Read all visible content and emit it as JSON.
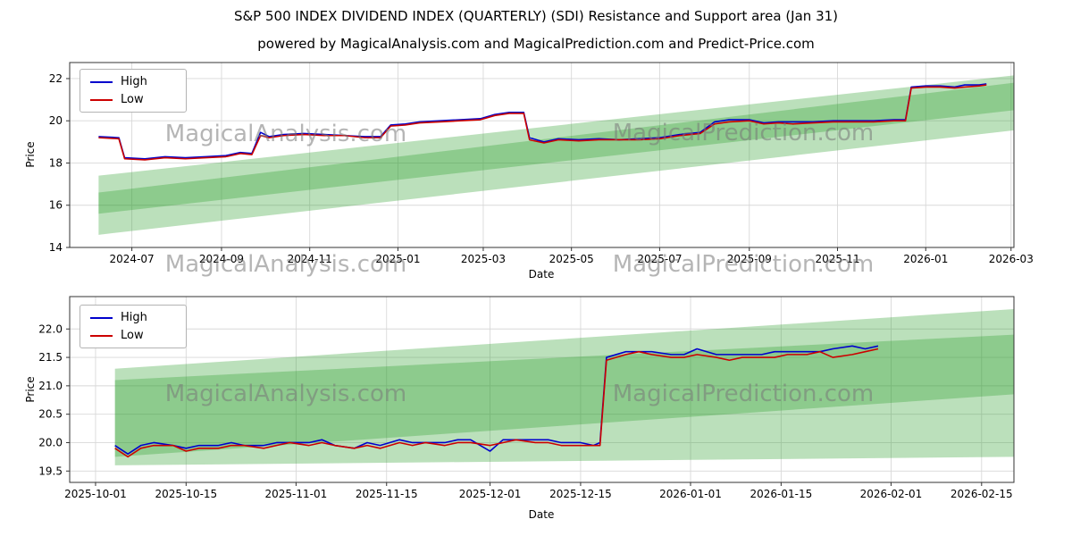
{
  "title": "S&P 500 INDEX DIVIDEND INDEX (QUARTERLY) (SDI) Resistance and Support area (Jan 31)",
  "subtitle": "powered by MagicalAnalysis.com and MagicalPrediction.com and Predict-Price.com",
  "watermarks": {
    "left": "MagicalAnalysis.com",
    "right": "MagicalPrediction.com"
  },
  "colors": {
    "high": "#0000cc",
    "low": "#cc0000",
    "band": "#2ca02c",
    "grid": "#d8d8d8",
    "axis": "#333333"
  },
  "chart_data": [
    {
      "type": "line",
      "title": "",
      "xlabel": "Date",
      "ylabel": "Price",
      "grid": true,
      "legend_position": "upper left",
      "x_domain": [
        "2024-05-19",
        "2026-03-03"
      ],
      "y_domain": [
        14,
        22.76
      ],
      "x_ticks": [
        {
          "v": "2024-07-01",
          "label": "2024-07"
        },
        {
          "v": "2024-09-01",
          "label": "2024-09"
        },
        {
          "v": "2024-11-01",
          "label": "2024-11"
        },
        {
          "v": "2025-01-01",
          "label": "2025-01"
        },
        {
          "v": "2025-03-01",
          "label": "2025-03"
        },
        {
          "v": "2025-05-01",
          "label": "2025-05"
        },
        {
          "v": "2025-07-01",
          "label": "2025-07"
        },
        {
          "v": "2025-09-01",
          "label": "2025-09"
        },
        {
          "v": "2025-11-01",
          "label": "2025-11"
        },
        {
          "v": "2026-01-01",
          "label": "2026-01"
        },
        {
          "v": "2026-03-01",
          "label": "2026-03"
        }
      ],
      "y_ticks": [
        {
          "v": 14,
          "label": "14"
        },
        {
          "v": 16,
          "label": "16"
        },
        {
          "v": 18,
          "label": "18"
        },
        {
          "v": 20,
          "label": "20"
        },
        {
          "v": 22,
          "label": "22"
        }
      ],
      "bands": [
        {
          "x": [
            "2024-06-08",
            "2026-03-03"
          ],
          "y_bottom": [
            14.6,
            19.55
          ],
          "y_top": [
            16.6,
            21.8
          ]
        },
        {
          "x": [
            "2024-06-08",
            "2026-03-03"
          ],
          "y_bottom": [
            15.6,
            20.5
          ],
          "y_top": [
            17.4,
            22.15
          ]
        }
      ],
      "x": [
        "2024-06-08",
        "2024-06-22",
        "2024-06-26",
        "2024-07-10",
        "2024-07-24",
        "2024-08-07",
        "2024-08-21",
        "2024-09-04",
        "2024-09-14",
        "2024-09-22",
        "2024-09-28",
        "2024-10-04",
        "2024-10-14",
        "2024-10-28",
        "2024-11-11",
        "2024-11-25",
        "2024-12-09",
        "2024-12-20",
        "2024-12-27",
        "2025-01-06",
        "2025-01-16",
        "2025-01-30",
        "2025-02-13",
        "2025-02-27",
        "2025-03-09",
        "2025-03-19",
        "2025-03-29",
        "2025-04-02",
        "2025-04-12",
        "2025-04-22",
        "2025-05-06",
        "2025-05-20",
        "2025-06-03",
        "2025-06-17",
        "2025-07-01",
        "2025-07-15",
        "2025-07-29",
        "2025-08-08",
        "2025-08-18",
        "2025-09-01",
        "2025-09-11",
        "2025-09-21",
        "2025-10-01",
        "2025-10-15",
        "2025-10-29",
        "2025-11-12",
        "2025-11-26",
        "2025-12-10",
        "2025-12-18",
        "2025-12-22",
        "2026-01-01",
        "2026-01-11",
        "2026-01-21",
        "2026-01-28",
        "2026-02-07",
        "2026-02-12"
      ],
      "series": [
        {
          "name": "High",
          "color_key": "high",
          "values": [
            19.25,
            19.2,
            18.25,
            18.2,
            18.3,
            18.25,
            18.3,
            18.35,
            18.5,
            18.45,
            19.45,
            19.25,
            19.35,
            19.4,
            19.35,
            19.3,
            19.25,
            19.25,
            19.8,
            19.85,
            19.95,
            20.0,
            20.05,
            20.1,
            20.3,
            20.4,
            20.4,
            19.2,
            19.0,
            19.15,
            19.1,
            19.15,
            19.1,
            19.15,
            19.2,
            19.35,
            19.45,
            19.95,
            20.05,
            20.05,
            19.9,
            19.95,
            19.95,
            19.95,
            20.0,
            20.0,
            20.0,
            20.05,
            20.05,
            21.6,
            21.65,
            21.65,
            21.6,
            21.7,
            21.7,
            21.75
          ]
        },
        {
          "name": "Low",
          "color_key": "low",
          "values": [
            19.2,
            19.15,
            18.2,
            18.15,
            18.25,
            18.2,
            18.25,
            18.3,
            18.45,
            18.4,
            19.3,
            19.2,
            19.3,
            19.35,
            19.3,
            19.3,
            19.2,
            19.2,
            19.75,
            19.8,
            19.9,
            19.95,
            20.0,
            20.05,
            20.25,
            20.35,
            20.35,
            19.1,
            18.95,
            19.1,
            19.05,
            19.1,
            19.1,
            19.1,
            19.15,
            19.3,
            19.4,
            19.85,
            19.95,
            20.0,
            19.85,
            19.9,
            19.85,
            19.9,
            19.95,
            19.95,
            19.95,
            20.0,
            20.0,
            21.55,
            21.6,
            21.6,
            21.55,
            21.6,
            21.65,
            21.7
          ]
        }
      ]
    },
    {
      "type": "line",
      "title": "",
      "xlabel": "Date",
      "ylabel": "Price",
      "grid": true,
      "legend_position": "upper left",
      "x_domain": [
        "2025-09-27",
        "2026-02-20"
      ],
      "y_domain": [
        19.3,
        22.57
      ],
      "x_ticks": [
        {
          "v": "2025-10-01",
          "label": "2025-10-01"
        },
        {
          "v": "2025-10-15",
          "label": "2025-10-15"
        },
        {
          "v": "2025-11-01",
          "label": "2025-11-01"
        },
        {
          "v": "2025-11-15",
          "label": "2025-11-15"
        },
        {
          "v": "2025-12-01",
          "label": "2025-12-01"
        },
        {
          "v": "2025-12-15",
          "label": "2025-12-15"
        },
        {
          "v": "2026-01-01",
          "label": "2026-01-01"
        },
        {
          "v": "2026-01-15",
          "label": "2026-01-15"
        },
        {
          "v": "2026-02-01",
          "label": "2026-02-01"
        },
        {
          "v": "2026-02-15",
          "label": "2026-02-15"
        }
      ],
      "y_ticks": [
        {
          "v": 19.5,
          "label": "19.5"
        },
        {
          "v": 20.0,
          "label": "20.0"
        },
        {
          "v": 20.5,
          "label": "20.5"
        },
        {
          "v": 21.0,
          "label": "21.0"
        },
        {
          "v": 21.5,
          "label": "21.5"
        },
        {
          "v": 22.0,
          "label": "22.0"
        }
      ],
      "bands": [
        {
          "x": [
            "2025-10-04",
            "2026-02-20"
          ],
          "y_bottom": [
            19.6,
            19.75
          ],
          "y_top": [
            21.3,
            22.35
          ]
        },
        {
          "x": [
            "2025-10-04",
            "2026-02-20"
          ],
          "y_bottom": [
            19.75,
            20.85
          ],
          "y_top": [
            21.1,
            21.9
          ]
        }
      ],
      "x": [
        "2025-10-04",
        "2025-10-06",
        "2025-10-08",
        "2025-10-10",
        "2025-10-13",
        "2025-10-15",
        "2025-10-17",
        "2025-10-20",
        "2025-10-22",
        "2025-10-24",
        "2025-10-27",
        "2025-10-29",
        "2025-10-31",
        "2025-11-03",
        "2025-11-05",
        "2025-11-07",
        "2025-11-10",
        "2025-11-12",
        "2025-11-14",
        "2025-11-17",
        "2025-11-19",
        "2025-11-21",
        "2025-11-24",
        "2025-11-26",
        "2025-11-28",
        "2025-12-01",
        "2025-12-03",
        "2025-12-05",
        "2025-12-08",
        "2025-12-10",
        "2025-12-12",
        "2025-12-15",
        "2025-12-17",
        "2025-12-18",
        "2025-12-19",
        "2025-12-22",
        "2025-12-24",
        "2025-12-26",
        "2025-12-29",
        "2025-12-31",
        "2026-01-02",
        "2026-01-05",
        "2026-01-07",
        "2026-01-09",
        "2026-01-12",
        "2026-01-14",
        "2026-01-16",
        "2026-01-19",
        "2026-01-21",
        "2026-01-23",
        "2026-01-26",
        "2026-01-28",
        "2026-01-30"
      ],
      "series": [
        {
          "name": "High",
          "color_key": "high",
          "values": [
            19.95,
            19.8,
            19.95,
            20.0,
            19.95,
            19.9,
            19.95,
            19.95,
            20.0,
            19.95,
            19.95,
            20.0,
            20.0,
            20.0,
            20.05,
            19.95,
            19.9,
            20.0,
            19.95,
            20.05,
            20.0,
            20.0,
            20.0,
            20.05,
            20.05,
            19.85,
            20.05,
            20.05,
            20.05,
            20.05,
            20.0,
            20.0,
            19.95,
            20.0,
            21.5,
            21.6,
            21.6,
            21.6,
            21.55,
            21.55,
            21.65,
            21.55,
            21.55,
            21.55,
            21.55,
            21.6,
            21.6,
            21.6,
            21.6,
            21.65,
            21.7,
            21.65,
            21.7
          ]
        },
        {
          "name": "Low",
          "color_key": "low",
          "values": [
            19.9,
            19.75,
            19.9,
            19.95,
            19.95,
            19.85,
            19.9,
            19.9,
            19.95,
            19.95,
            19.9,
            19.95,
            20.0,
            19.95,
            20.0,
            19.95,
            19.9,
            19.95,
            19.9,
            20.0,
            19.95,
            20.0,
            19.95,
            20.0,
            20.0,
            19.95,
            20.0,
            20.05,
            20.0,
            20.0,
            19.95,
            19.95,
            19.95,
            19.95,
            21.45,
            21.55,
            21.6,
            21.55,
            21.5,
            21.5,
            21.55,
            21.5,
            21.45,
            21.5,
            21.5,
            21.5,
            21.55,
            21.55,
            21.6,
            21.5,
            21.55,
            21.6,
            21.65
          ]
        }
      ]
    }
  ]
}
